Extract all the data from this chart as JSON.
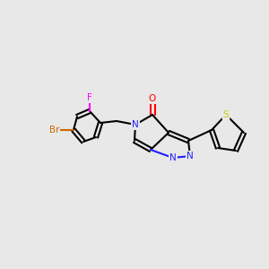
{
  "background_color": "#e8e8e8",
  "atom_colors": {
    "C": "#000000",
    "N": "#2020ff",
    "O": "#ff0000",
    "F": "#ff00ff",
    "Br": "#cc6600",
    "S": "#cccc00"
  },
  "lw": 1.5,
  "font_size": 7.5
}
